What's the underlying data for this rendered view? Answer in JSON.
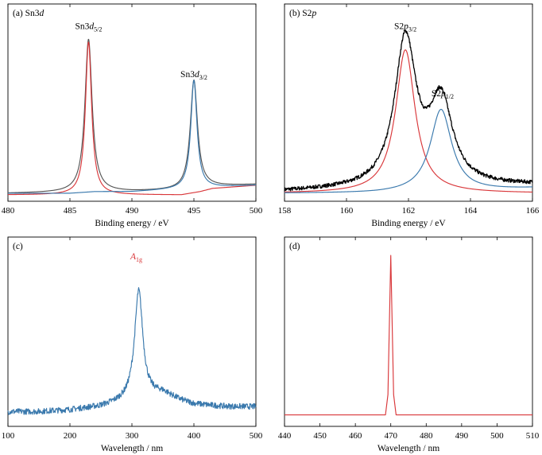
{
  "chart_data": [
    {
      "type": "line",
      "panel": "(a)",
      "title": "(a) Sn3d",
      "title_parts": {
        "prefix": "(a) Sn3",
        "italic": "d"
      },
      "xlabel": "Binding energy / eV",
      "ylabel": "",
      "xlim": [
        480,
        500
      ],
      "ylim": [
        0,
        1
      ],
      "xticks": [
        480,
        485,
        490,
        495,
        500
      ],
      "grid": false,
      "annotations": [
        {
          "text": "Sn3d5/2",
          "main": "Sn3",
          "ital": "d",
          "sub": "5/2",
          "x": 486.5,
          "y": 1.04
        },
        {
          "text": "Sn3d3/2",
          "main": "Sn3",
          "ital": "d",
          "sub": "3/2",
          "x": 495.0,
          "y": 0.74
        }
      ],
      "series": [
        {
          "name": "",
          "color": "#555555",
          "kind": "envelope",
          "peaks": [
            [
              486.5,
              0.96,
              0.35,
              1.1
            ],
            [
              495.0,
              0.68,
              0.35,
              1.1
            ]
          ],
          "background": [
            [
              480,
              0.01
            ],
            [
              490,
              0.02
            ],
            [
              494,
              0.03
            ],
            [
              496,
              0.05
            ],
            [
              500,
              0.065
            ]
          ]
        },
        {
          "name": "",
          "color": "#d9373a",
          "kind": "component",
          "peaks": [
            [
              486.5,
              0.96,
              0.3,
              0
            ]
          ],
          "background": [
            [
              480,
              0.0
            ],
            [
              485,
              0.0
            ],
            [
              488,
              0.0
            ],
            [
              492,
              0.0
            ],
            [
              494,
              0.0
            ],
            [
              495.5,
              0.02
            ],
            [
              496.5,
              0.04
            ],
            [
              500,
              0.06
            ]
          ]
        },
        {
          "name": "",
          "color": "#3a79ad",
          "kind": "component",
          "peaks": [
            [
              495.0,
              0.68,
              0.3,
              0
            ]
          ],
          "background": [
            [
              480,
              0.01
            ],
            [
              485,
              0.01
            ],
            [
              487,
              0.02
            ],
            [
              490,
              0.02
            ],
            [
              500,
              0.06
            ]
          ]
        }
      ]
    },
    {
      "type": "line",
      "panel": "(b)",
      "title": "(b) S2p",
      "title_parts": {
        "prefix": "(b) S2",
        "italic": "p"
      },
      "xlabel": "Binding energy / eV",
      "ylabel": "",
      "xlim": [
        158,
        166
      ],
      "ylim": [
        0,
        1
      ],
      "xticks": [
        158,
        160,
        162,
        164,
        166
      ],
      "grid": false,
      "annotations": [
        {
          "text": "S2p3/2",
          "main": "S2",
          "ital": "p",
          "sub": "3/2",
          "x": 161.9,
          "y": 1.04
        },
        {
          "text": "S2p1/2",
          "main": "S2",
          "ital": "p",
          "sub": "1/2",
          "x": 163.1,
          "y": 0.62
        }
      ],
      "series": [
        {
          "name": "",
          "color": "#000000",
          "kind": "envelope",
          "noise": 0.012,
          "peaks": [
            [
              161.9,
              0.92,
              0.42,
              0
            ],
            [
              163.05,
              0.52,
              0.45,
              0
            ]
          ],
          "background": [
            [
              158,
              0.02
            ],
            [
              160,
              0.03
            ],
            [
              162,
              0.04
            ],
            [
              164,
              0.05
            ],
            [
              166,
              0.06
            ]
          ]
        },
        {
          "name": "",
          "color": "#d9373a",
          "kind": "component",
          "peaks": [
            [
              161.9,
              0.9,
              0.38,
              0
            ]
          ],
          "background": [
            [
              158,
              0.01
            ],
            [
              163,
              0.01
            ],
            [
              164,
              0.01
            ],
            [
              166,
              0.01
            ]
          ]
        },
        {
          "name": "",
          "color": "#3a79ad",
          "kind": "component",
          "peaks": [
            [
              163.05,
              0.52,
              0.42,
              0
            ]
          ],
          "background": [
            [
              158,
              0.01
            ],
            [
              161,
              0.01
            ],
            [
              164,
              0.02
            ],
            [
              166,
              0.04
            ]
          ]
        }
      ]
    },
    {
      "type": "line",
      "panel": "(c)",
      "title": "(c)",
      "title_parts": {
        "prefix": "(c)",
        "italic": ""
      },
      "xlabel": "Wavelength / nm",
      "ylabel": "",
      "xlim": [
        100,
        500
      ],
      "ylim": [
        0,
        1
      ],
      "xticks": [
        100,
        200,
        300,
        400,
        500
      ],
      "grid": false,
      "annotations": [
        {
          "text": "A1g",
          "main": "",
          "ital": "A",
          "sub": "1g",
          "x": 307,
          "y": 0.98,
          "color": "#d9373a"
        }
      ],
      "series": [
        {
          "name": "",
          "color": "#3a79ad",
          "kind": "envelope",
          "noise": 0.018,
          "peaks": [
            [
              311,
              0.66,
              8,
              1.0
            ],
            [
              350,
              0.04,
              25,
              0
            ]
          ],
          "background": [
            [
              100,
              0.05
            ],
            [
              150,
              0.05
            ],
            [
              200,
              0.06
            ],
            [
              250,
              0.08
            ],
            [
              300,
              0.12
            ],
            [
              350,
              0.12
            ],
            [
              400,
              0.09
            ],
            [
              450,
              0.08
            ],
            [
              500,
              0.08
            ]
          ]
        }
      ]
    },
    {
      "type": "line",
      "panel": "(d)",
      "title": "(d)",
      "title_parts": {
        "prefix": "(d)",
        "italic": ""
      },
      "xlabel": "Wavelength / nm",
      "ylabel": "",
      "xlim": [
        440,
        510
      ],
      "ylim": [
        0,
        1
      ],
      "xticks": [
        440,
        450,
        460,
        470,
        480,
        490,
        500,
        510
      ],
      "grid": false,
      "annotations": [],
      "series": [
        {
          "name": "",
          "color": "#d9373a",
          "kind": "spike",
          "points": [
            [
              440,
              0.03
            ],
            [
              468.5,
              0.03
            ],
            [
              469.2,
              0.15
            ],
            [
              470,
              0.97
            ],
            [
              470.8,
              0.15
            ],
            [
              471.5,
              0.03
            ],
            [
              510,
              0.03
            ]
          ]
        }
      ]
    }
  ]
}
